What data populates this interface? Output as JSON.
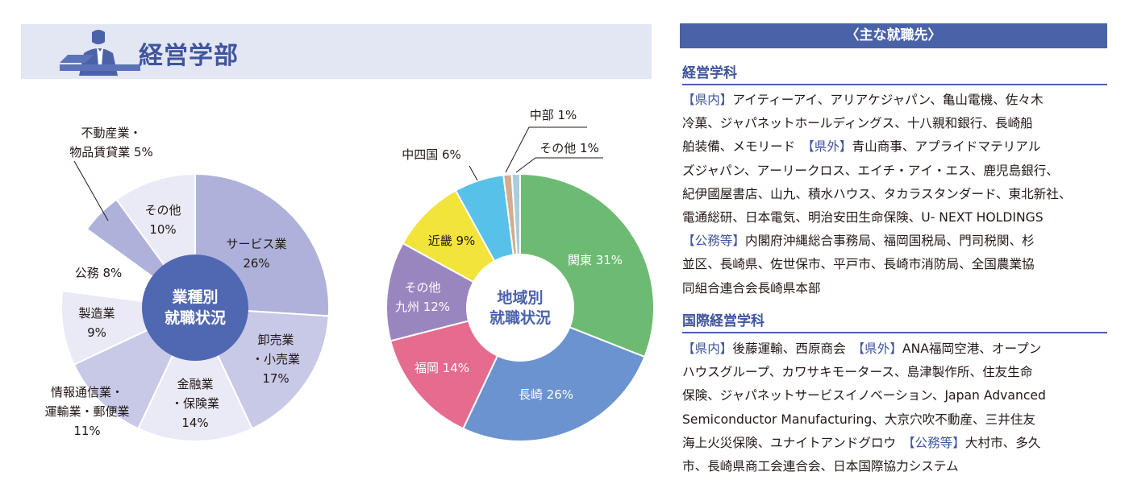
{
  "department": {
    "title": "経営学部"
  },
  "chart_industry": {
    "center": [
      "業種別",
      "就職状況"
    ],
    "labels": {
      "service": [
        "サービス業",
        "26%"
      ],
      "wholesale": [
        "卸売業",
        "・小売業",
        "17%"
      ],
      "finance": [
        "金融業",
        "・保険業",
        "14%"
      ],
      "infocomm": [
        "情報通信業・",
        "運輸業・郵便業",
        "11%"
      ],
      "manufacturing": [
        "製造業",
        "9%"
      ],
      "public": [
        "公務 8%"
      ],
      "realestate": [
        "不動産業・",
        "物品賃貸業 5%"
      ],
      "other": [
        "その他",
        "10%"
      ]
    }
  },
  "chart_region": {
    "center": [
      "地域別",
      "就職状況"
    ],
    "labels": {
      "kanto": "関東 31%",
      "nagasaki": "長崎 26%",
      "fukuoka": "福岡 14%",
      "kyushu": [
        "その他",
        "九州 12%"
      ],
      "kinki": "近畿 9%",
      "chushikoku": "中四国 6%",
      "chubu": "中部 1%",
      "other": "その他 1%"
    }
  },
  "chart_data": [
    {
      "type": "pie",
      "title": "業種別就職状況",
      "categories": [
        "サービス業",
        "卸売業・小売業",
        "金融業・保険業",
        "情報通信業・運輸業・郵便業",
        "製造業",
        "公務",
        "不動産業・物品賃貸業",
        "その他"
      ],
      "values": [
        26,
        17,
        14,
        11,
        9,
        8,
        5,
        10
      ],
      "colors": [
        "#aeb2da",
        "#c7c9e6",
        "#e9eaf6",
        "#c7c9e6",
        "#e9eaf6",
        "#ffffff",
        "#aeb2da",
        "#e9eaf6"
      ],
      "center_color": "#5067b1"
    },
    {
      "type": "pie",
      "title": "地域別就職状況",
      "categories": [
        "関東",
        "長崎",
        "福岡",
        "その他九州",
        "近畿",
        "中四国",
        "中部",
        "その他"
      ],
      "values": [
        31,
        26,
        14,
        12,
        9,
        6,
        1,
        1
      ],
      "colors": [
        "#6dbb72",
        "#6a93cf",
        "#e66c8f",
        "#9a86bf",
        "#f2e43a",
        "#57c1ea",
        "#d2ad8c",
        "#a9cddd"
      ]
    }
  ],
  "right": {
    "banner": "〈主な就職先〉",
    "sec1": {
      "heading": "経営学科",
      "lines": [
        [
          {
            "t": "【県内】",
            "tag": true
          },
          {
            "t": "アイティーアイ、アリアケジャパン、亀山電機、佐々木"
          }
        ],
        [
          {
            "t": "冷菓、ジャパネットホールディングス、十八親和銀行、長崎船"
          }
        ],
        [
          {
            "t": "舶装備、メモリード　"
          },
          {
            "t": "【県外】",
            "tag": true
          },
          {
            "t": "青山商事、アプライドマテリアル"
          }
        ],
        [
          {
            "t": "ズジャパン、アーリークロス、エイチ・アイ・エス、鹿児島銀行、"
          }
        ],
        [
          {
            "t": "紀伊國屋書店、山九、積水ハウス、タカラスタンダード、東北新社、"
          }
        ],
        [
          {
            "t": "電通総研、日本電気、明治安田生命保険、U‑ NEXT HOLDINGS"
          }
        ],
        [
          {
            "t": "【公務等】",
            "tag": true
          },
          {
            "t": "内閣府沖縄総合事務局、福岡国税局、門司税関、杉"
          }
        ],
        [
          {
            "t": "並区、長崎県、佐世保市、平戸市、長崎市消防局、全国農業協"
          }
        ],
        [
          {
            "t": "同組合連合会長崎県本部"
          }
        ]
      ]
    },
    "sec2": {
      "heading": "国際経営学科",
      "lines": [
        [
          {
            "t": "【県内】",
            "tag": true
          },
          {
            "t": "後藤運輸、西原商会　"
          },
          {
            "t": "【県外】",
            "tag": true
          },
          {
            "t": "ANA福岡空港、オープン"
          }
        ],
        [
          {
            "t": "ハウスグループ、カワサキモータース、島津製作所、住友生命"
          }
        ],
        [
          {
            "t": "保険、ジャパネットサービスイノベーション、Japan Advanced"
          }
        ],
        [
          {
            "t": "Semiconductor Manufacturing、大京穴吹不動産、三井住友"
          }
        ],
        [
          {
            "t": "海上火災保険、ユナイトアンドグロウ　"
          },
          {
            "t": "【公務等】",
            "tag": true
          },
          {
            "t": "大村市、多久"
          }
        ],
        [
          {
            "t": "市、長崎県商工会連合会、日本国際協力システム"
          }
        ]
      ]
    }
  }
}
